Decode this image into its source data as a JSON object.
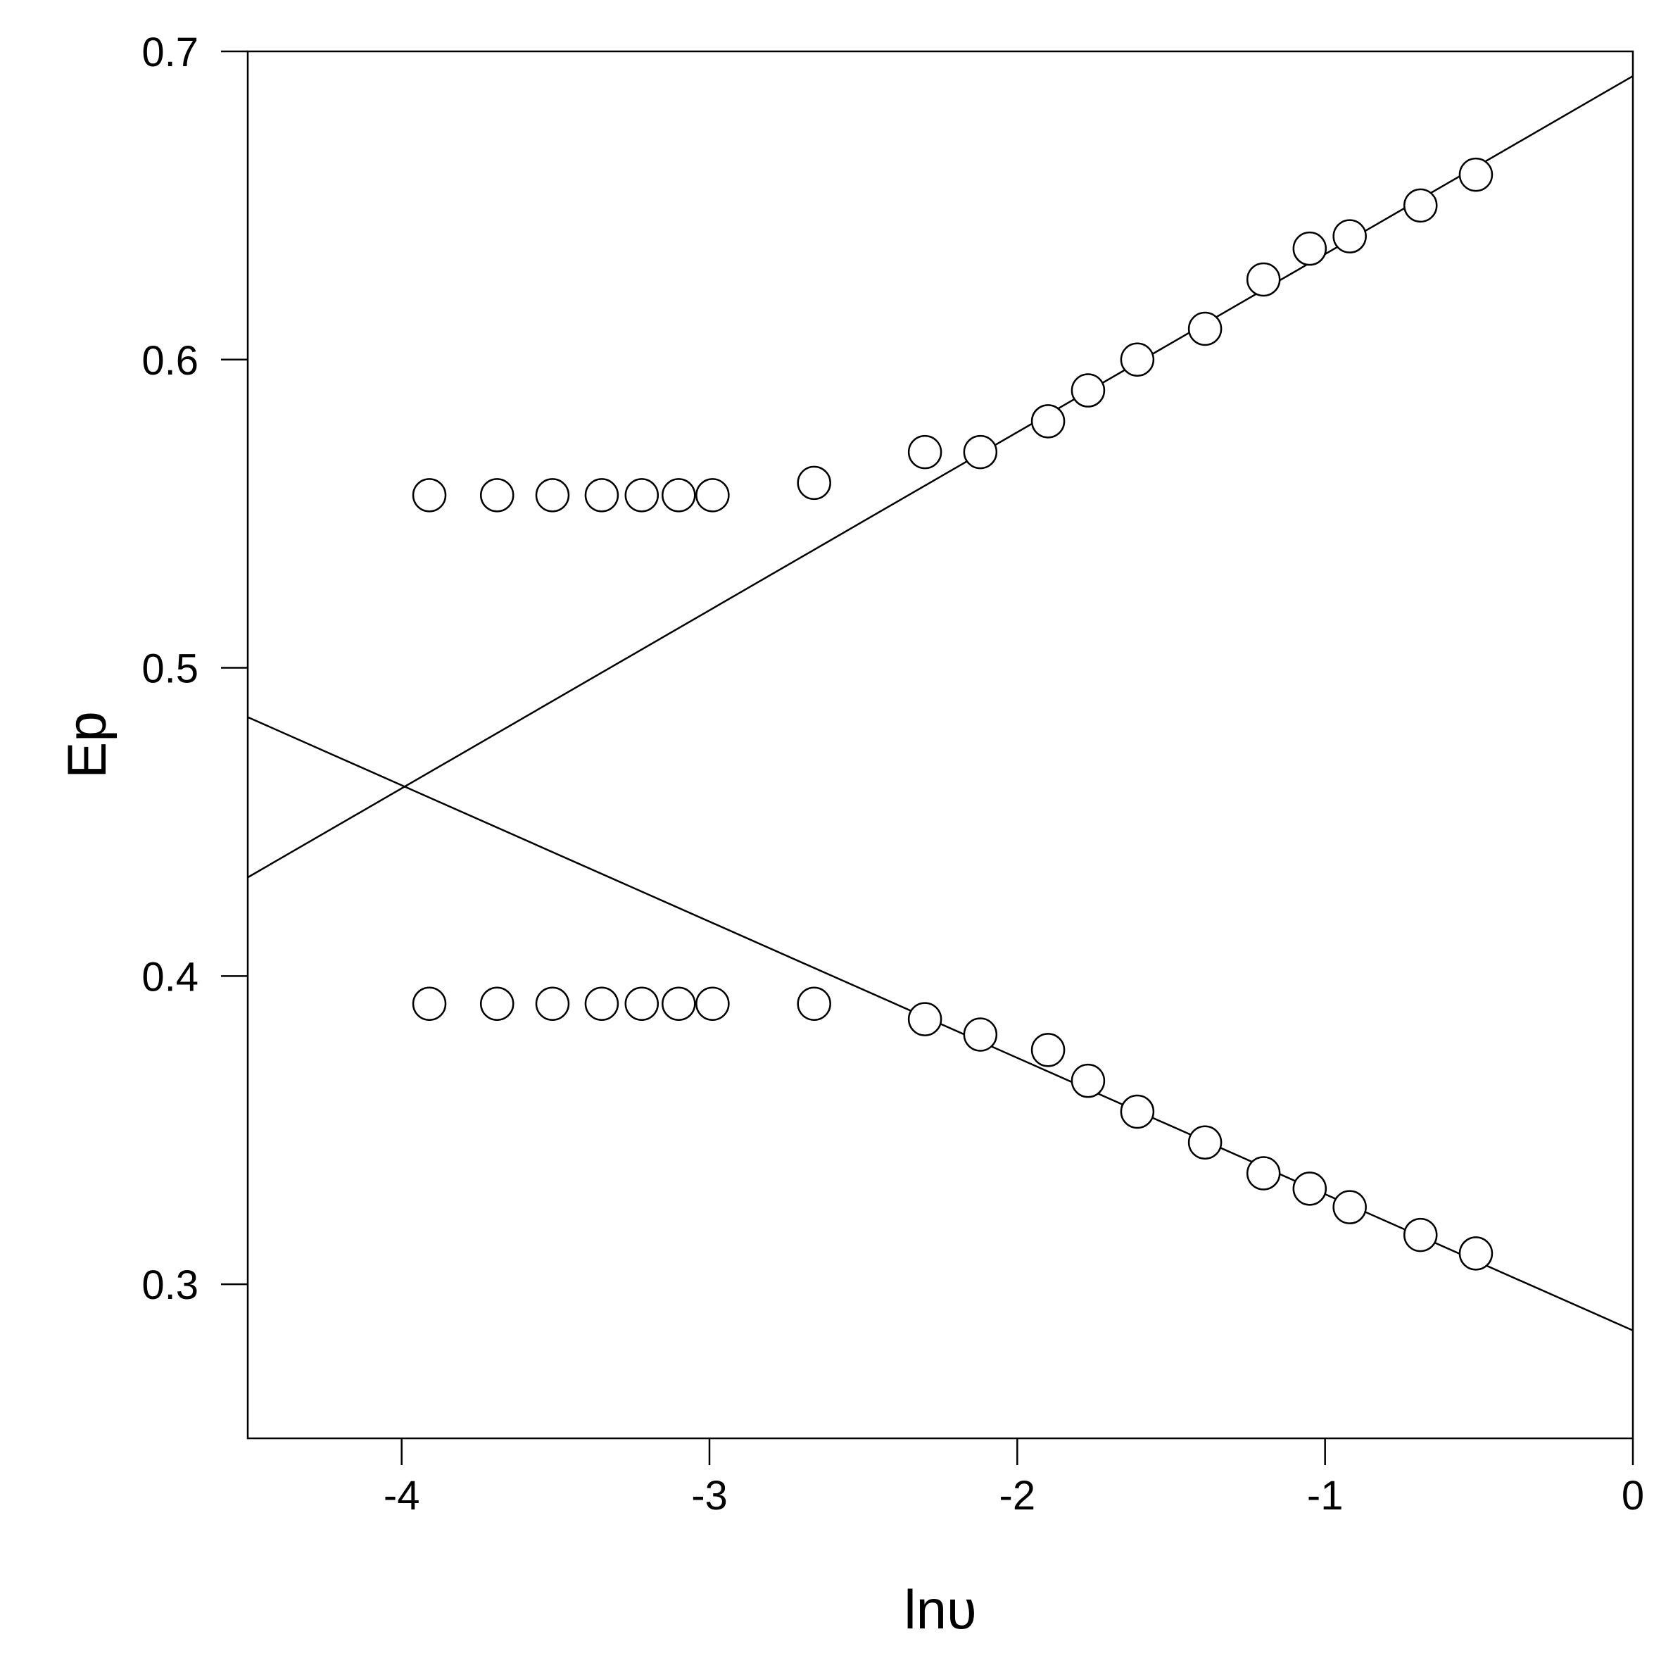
{
  "chart_data": {
    "type": "scatter",
    "title": "",
    "xlabel": "lnυ",
    "ylabel": "Ep",
    "xlim": [
      -4.5,
      0
    ],
    "ylim": [
      0.25,
      0.7
    ],
    "grid": false,
    "xticks": [
      -4,
      -3,
      -2,
      -1,
      0
    ],
    "xtick_labels": [
      "-4",
      "-3",
      "-2",
      "-1",
      "0"
    ],
    "yticks": [
      0.3,
      0.4,
      0.5,
      0.6,
      0.7
    ],
    "ytick_labels": [
      "0.3",
      "0.4",
      "0.5",
      "0.6",
      "0.7"
    ],
    "series": [
      {
        "marker": "open-circle",
        "points": [
          [
            -3.91,
            0.556
          ],
          [
            -3.69,
            0.556
          ],
          [
            -3.51,
            0.556
          ],
          [
            -3.35,
            0.556
          ],
          [
            -3.22,
            0.556
          ],
          [
            -3.1,
            0.556
          ],
          [
            -2.99,
            0.556
          ],
          [
            -2.66,
            0.56
          ],
          [
            -2.3,
            0.57
          ],
          [
            -2.12,
            0.57
          ],
          [
            -1.9,
            0.58
          ],
          [
            -1.77,
            0.59
          ],
          [
            -1.61,
            0.6
          ],
          [
            -1.39,
            0.61
          ],
          [
            -1.2,
            0.626
          ],
          [
            -1.05,
            0.636
          ],
          [
            -0.92,
            0.64
          ],
          [
            -0.69,
            0.65
          ],
          [
            -0.51,
            0.66
          ]
        ],
        "fit_line": [
          [
            -4.5,
            0.432
          ],
          [
            0,
            0.692
          ]
        ]
      },
      {
        "marker": "open-circle",
        "points": [
          [
            -3.91,
            0.391
          ],
          [
            -3.69,
            0.391
          ],
          [
            -3.51,
            0.391
          ],
          [
            -3.35,
            0.391
          ],
          [
            -3.22,
            0.391
          ],
          [
            -3.1,
            0.391
          ],
          [
            -2.99,
            0.391
          ],
          [
            -2.66,
            0.391
          ],
          [
            -2.3,
            0.386
          ],
          [
            -2.12,
            0.381
          ],
          [
            -1.9,
            0.376
          ],
          [
            -1.77,
            0.366
          ],
          [
            -1.61,
            0.356
          ],
          [
            -1.39,
            0.346
          ],
          [
            -1.2,
            0.336
          ],
          [
            -1.05,
            0.331
          ],
          [
            -0.92,
            0.325
          ],
          [
            -0.69,
            0.316
          ],
          [
            -0.51,
            0.31
          ]
        ],
        "fit_line": [
          [
            -4.5,
            0.484
          ],
          [
            0,
            0.285
          ]
        ]
      }
    ]
  }
}
